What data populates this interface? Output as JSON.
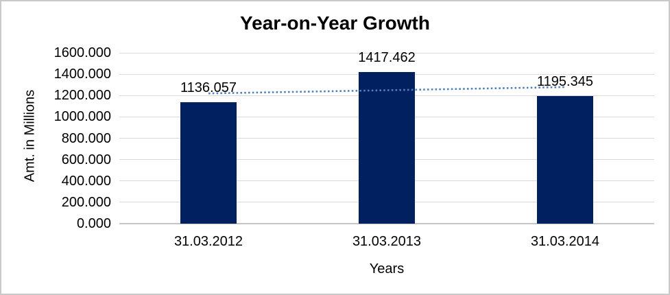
{
  "chart_data": {
    "type": "bar",
    "title": "Year-on-Year Growth",
    "categories": [
      "31.03.2012",
      "31.03.2013",
      "31.03.2014"
    ],
    "values": [
      1136.057,
      1417.462,
      1195.345
    ],
    "value_labels": [
      "1136.057",
      "1417.462",
      "1195.345"
    ],
    "xlabel": "Years",
    "ylabel": "Amt. in Millions",
    "ylim": [
      0,
      1600
    ],
    "ytick_step": 200,
    "ytick_labels_bottom_to_top": [
      "0.000",
      "200.000",
      "400.000",
      "600.000",
      "800.000",
      "1000.000",
      "1200.000",
      "1400.000",
      "1600.000"
    ],
    "grid": true,
    "legend": "none",
    "trendline": {
      "type": "linear",
      "style": "dotted",
      "span": "first-to-last-category"
    },
    "colors": {
      "bar": "#002060",
      "trendline": "#4F81BD",
      "gridline": "#D9D9D9",
      "axis_line": "#C6C6C6",
      "text": "#000000",
      "background": "#FFFFFF",
      "page_border": "#C9C9C9"
    }
  }
}
